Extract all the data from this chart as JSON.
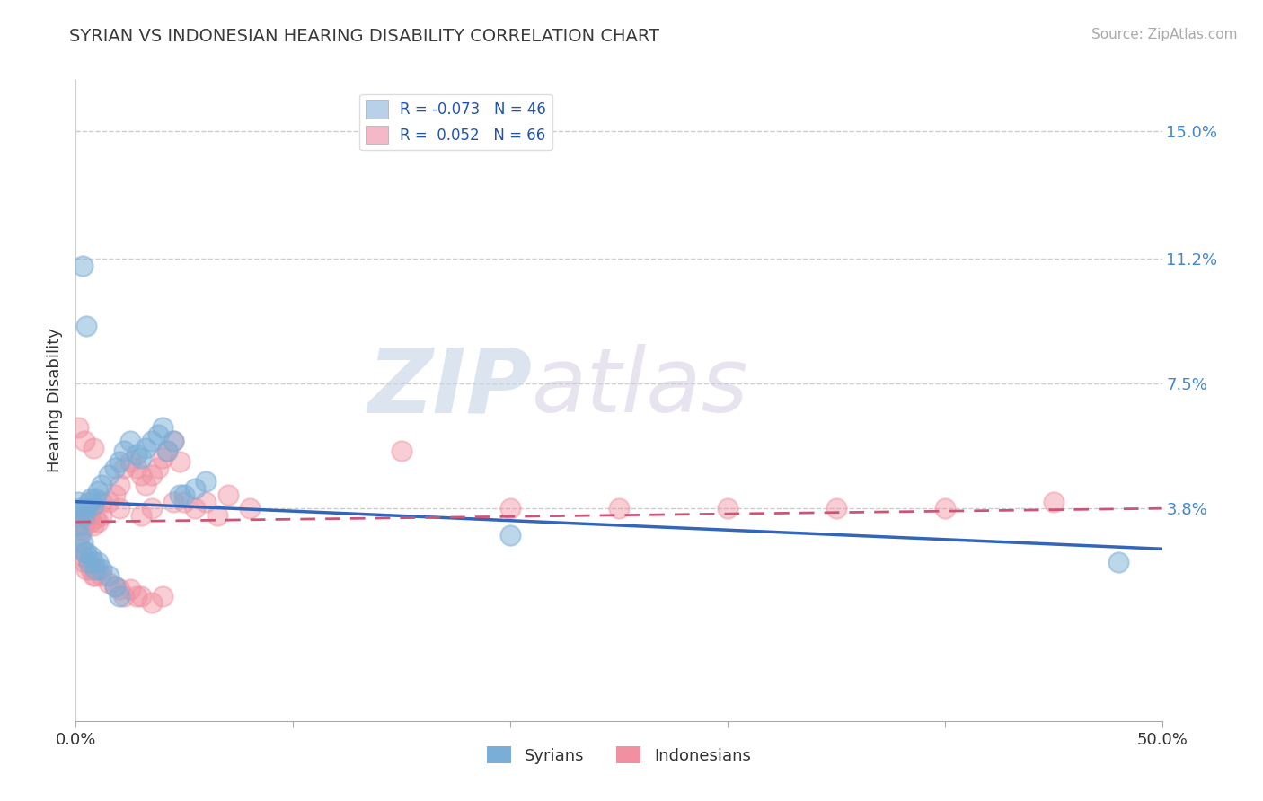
{
  "title": "SYRIAN VS INDONESIAN HEARING DISABILITY CORRELATION CHART",
  "source": "Source: ZipAtlas.com",
  "ylabel_values": [
    0.15,
    0.112,
    0.075,
    0.038
  ],
  "xmin": 0.0,
  "xmax": 0.5,
  "ymin": -0.025,
  "ymax": 0.165,
  "ylabel": "Hearing Disability",
  "legend_entries": [
    {
      "label": "R = -0.073   N = 46",
      "color": "#b8d0e8"
    },
    {
      "label": "R =  0.052   N = 66",
      "color": "#f4b8c8"
    }
  ],
  "bottom_legend": [
    "Syrians",
    "Indonesians"
  ],
  "syrians_color": "#7aaed6",
  "indonesians_color": "#f090a0",
  "watermark_zip": "ZIP",
  "watermark_atlas": "atlas",
  "title_color": "#3a3a3a",
  "tick_label_color": "#4488cc",
  "syrian_line_color": "#3366bb",
  "indonesian_line_color": "#cc5577",
  "syrian_points": [
    [
      0.001,
      0.04
    ],
    [
      0.002,
      0.038
    ],
    [
      0.003,
      0.037
    ],
    [
      0.004,
      0.036
    ],
    [
      0.005,
      0.038
    ],
    [
      0.006,
      0.04
    ],
    [
      0.007,
      0.041
    ],
    [
      0.008,
      0.039
    ],
    [
      0.009,
      0.041
    ],
    [
      0.01,
      0.043
    ],
    [
      0.012,
      0.045
    ],
    [
      0.015,
      0.048
    ],
    [
      0.018,
      0.05
    ],
    [
      0.02,
      0.052
    ],
    [
      0.022,
      0.055
    ],
    [
      0.025,
      0.058
    ],
    [
      0.028,
      0.054
    ],
    [
      0.03,
      0.053
    ],
    [
      0.032,
      0.056
    ],
    [
      0.035,
      0.058
    ],
    [
      0.038,
      0.06
    ],
    [
      0.04,
      0.062
    ],
    [
      0.042,
      0.055
    ],
    [
      0.045,
      0.058
    ],
    [
      0.048,
      0.042
    ],
    [
      0.05,
      0.042
    ],
    [
      0.055,
      0.044
    ],
    [
      0.06,
      0.046
    ],
    [
      0.001,
      0.033
    ],
    [
      0.002,
      0.03
    ],
    [
      0.003,
      0.028
    ],
    [
      0.004,
      0.025
    ],
    [
      0.005,
      0.025
    ],
    [
      0.006,
      0.022
    ],
    [
      0.007,
      0.024
    ],
    [
      0.008,
      0.022
    ],
    [
      0.009,
      0.02
    ],
    [
      0.01,
      0.022
    ],
    [
      0.012,
      0.02
    ],
    [
      0.015,
      0.018
    ],
    [
      0.018,
      0.015
    ],
    [
      0.02,
      0.012
    ],
    [
      0.003,
      0.11
    ],
    [
      0.005,
      0.092
    ],
    [
      0.2,
      0.03
    ],
    [
      0.48,
      0.022
    ]
  ],
  "indonesian_points": [
    [
      0.001,
      0.036
    ],
    [
      0.002,
      0.034
    ],
    [
      0.003,
      0.032
    ],
    [
      0.004,
      0.033
    ],
    [
      0.005,
      0.035
    ],
    [
      0.006,
      0.036
    ],
    [
      0.007,
      0.034
    ],
    [
      0.008,
      0.033
    ],
    [
      0.009,
      0.035
    ],
    [
      0.01,
      0.034
    ],
    [
      0.012,
      0.036
    ],
    [
      0.015,
      0.04
    ],
    [
      0.018,
      0.042
    ],
    [
      0.02,
      0.045
    ],
    [
      0.022,
      0.05
    ],
    [
      0.025,
      0.052
    ],
    [
      0.028,
      0.05
    ],
    [
      0.03,
      0.048
    ],
    [
      0.032,
      0.045
    ],
    [
      0.035,
      0.048
    ],
    [
      0.038,
      0.05
    ],
    [
      0.04,
      0.053
    ],
    [
      0.042,
      0.055
    ],
    [
      0.045,
      0.058
    ],
    [
      0.048,
      0.052
    ],
    [
      0.05,
      0.04
    ],
    [
      0.06,
      0.04
    ],
    [
      0.07,
      0.042
    ],
    [
      0.001,
      0.028
    ],
    [
      0.002,
      0.026
    ],
    [
      0.003,
      0.024
    ],
    [
      0.004,
      0.022
    ],
    [
      0.005,
      0.02
    ],
    [
      0.006,
      0.022
    ],
    [
      0.007,
      0.02
    ],
    [
      0.008,
      0.018
    ],
    [
      0.009,
      0.018
    ],
    [
      0.01,
      0.02
    ],
    [
      0.012,
      0.018
    ],
    [
      0.015,
      0.016
    ],
    [
      0.018,
      0.015
    ],
    [
      0.02,
      0.014
    ],
    [
      0.022,
      0.012
    ],
    [
      0.025,
      0.014
    ],
    [
      0.028,
      0.012
    ],
    [
      0.03,
      0.012
    ],
    [
      0.035,
      0.01
    ],
    [
      0.04,
      0.012
    ],
    [
      0.001,
      0.062
    ],
    [
      0.004,
      0.058
    ],
    [
      0.008,
      0.056
    ],
    [
      0.15,
      0.055
    ],
    [
      0.2,
      0.038
    ],
    [
      0.25,
      0.038
    ],
    [
      0.3,
      0.038
    ],
    [
      0.35,
      0.038
    ],
    [
      0.4,
      0.038
    ],
    [
      0.45,
      0.04
    ],
    [
      0.012,
      0.04
    ],
    [
      0.02,
      0.038
    ],
    [
      0.03,
      0.036
    ],
    [
      0.035,
      0.038
    ],
    [
      0.045,
      0.04
    ],
    [
      0.055,
      0.038
    ],
    [
      0.065,
      0.036
    ],
    [
      0.08,
      0.038
    ]
  ],
  "syrian_line": {
    "x0": 0.0,
    "y0": 0.04,
    "x1": 0.5,
    "y1": 0.026
  },
  "indonesian_line": {
    "x0": 0.0,
    "y0": 0.034,
    "x1": 0.5,
    "y1": 0.038
  }
}
